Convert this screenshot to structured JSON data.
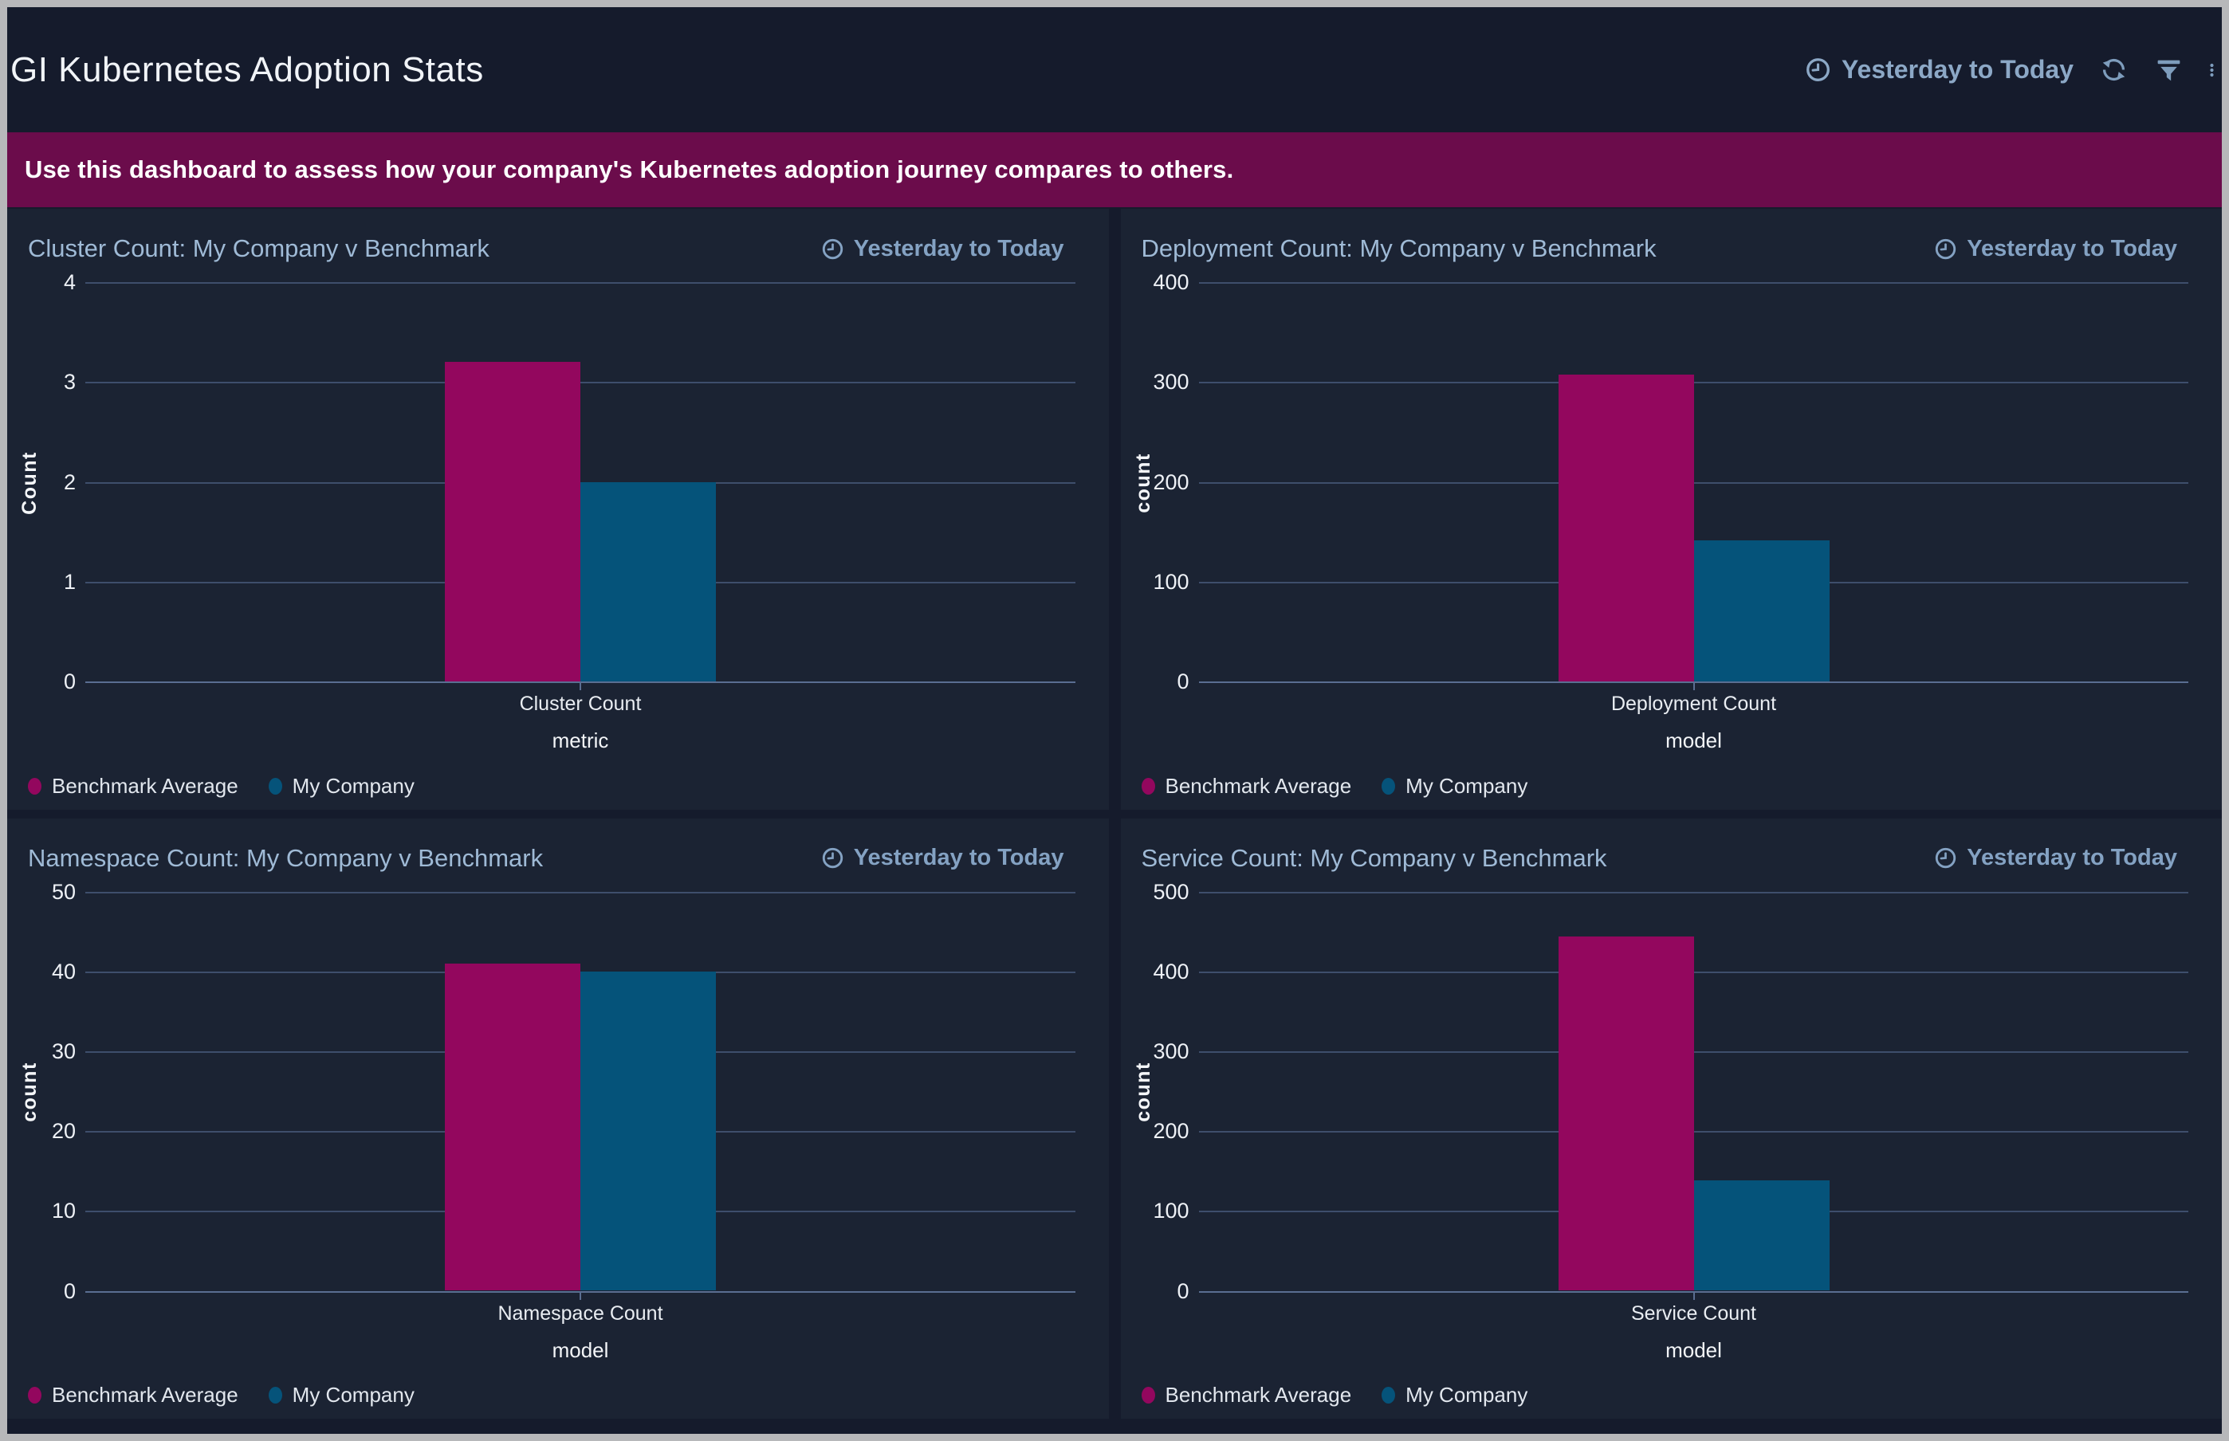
{
  "page": {
    "title": "GI Kubernetes Adoption Stats"
  },
  "topbar": {
    "time_range_label": "Yesterday to Today",
    "icons": [
      "clock-icon",
      "refresh-icon",
      "filter-icon",
      "kebab-menu-icon"
    ]
  },
  "banner": {
    "text": "Use this dashboard to assess how your company's Kubernetes adoption journey compares to others."
  },
  "colors": {
    "page_bg": "#151b2c",
    "panel_bg": "#1b2333",
    "banner_bg": "#6b0c4b",
    "benchmark": "#93075e",
    "company": "#05537a",
    "gridline": "#3e4e6c",
    "accent_text": "#84a2c3",
    "title_text": "#9fbad6"
  },
  "legend": [
    {
      "label": "Benchmark Average",
      "color": "#93075e"
    },
    {
      "label": "My Company",
      "color": "#05537a"
    }
  ],
  "chart_data": [
    {
      "type": "bar",
      "title": "Cluster Count: My Company v Benchmark",
      "time_range": "Yesterday to Today",
      "categories": [
        "Cluster Count"
      ],
      "xlabel": "metric",
      "ylabel": "Count",
      "ylim": [
        0,
        4
      ],
      "yticks": [
        0,
        1,
        2,
        3,
        4
      ],
      "grid": true,
      "legend_position": "bottom-left",
      "series": [
        {
          "name": "Benchmark Average",
          "color": "#93075e",
          "values": [
            3.2
          ]
        },
        {
          "name": "My Company",
          "color": "#05537a",
          "values": [
            2
          ]
        }
      ]
    },
    {
      "type": "bar",
      "title": "Deployment Count: My Company v Benchmark",
      "time_range": "Yesterday to Today",
      "categories": [
        "Deployment Count"
      ],
      "xlabel": "model",
      "ylabel": "count",
      "ylim": [
        0,
        400
      ],
      "yticks": [
        0,
        100,
        200,
        300,
        400
      ],
      "grid": true,
      "legend_position": "bottom-left",
      "series": [
        {
          "name": "Benchmark Average",
          "color": "#93075e",
          "values": [
            307
          ]
        },
        {
          "name": "My Company",
          "color": "#05537a",
          "values": [
            141
          ]
        }
      ]
    },
    {
      "type": "bar",
      "title": "Namespace Count: My Company v Benchmark",
      "time_range": "Yesterday to Today",
      "categories": [
        "Namespace Count"
      ],
      "xlabel": "model",
      "ylabel": "count",
      "ylim": [
        0,
        50
      ],
      "yticks": [
        0,
        10,
        20,
        30,
        40,
        50
      ],
      "grid": true,
      "legend_position": "bottom-left",
      "series": [
        {
          "name": "Benchmark Average",
          "color": "#93075e",
          "values": [
            41
          ]
        },
        {
          "name": "My Company",
          "color": "#05537a",
          "values": [
            40
          ]
        }
      ]
    },
    {
      "type": "bar",
      "title": "Service Count: My Company v Benchmark",
      "time_range": "Yesterday to Today",
      "categories": [
        "Service Count"
      ],
      "xlabel": "model",
      "ylabel": "count",
      "ylim": [
        0,
        500
      ],
      "yticks": [
        0,
        100,
        200,
        300,
        400,
        500
      ],
      "grid": true,
      "legend_position": "bottom-left",
      "series": [
        {
          "name": "Benchmark Average",
          "color": "#93075e",
          "values": [
            444
          ]
        },
        {
          "name": "My Company",
          "color": "#05537a",
          "values": [
            138
          ]
        }
      ]
    }
  ]
}
